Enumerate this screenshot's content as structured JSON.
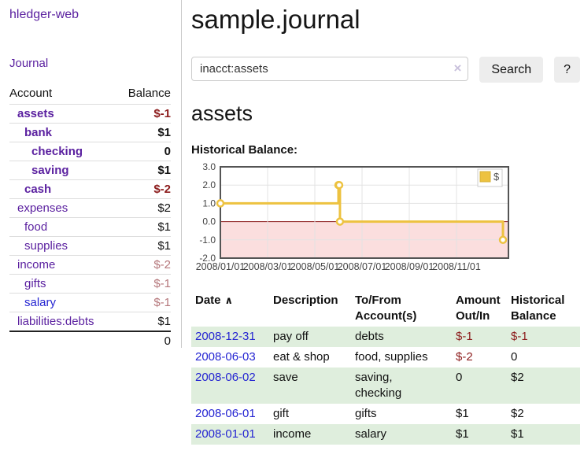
{
  "colors": {
    "link_purple": "#5b21a0",
    "link_blue": "#2525d2",
    "negative_strong": "#8c1c1c",
    "negative_muted": "#b5777b",
    "row_stripe_green": "#dfeedd",
    "chart_series_yellow": "#edc240",
    "chart_negative_region": "#fbdede",
    "chart_zero_line": "#8c1c1c"
  },
  "sidebar": {
    "brand": "hledger-web",
    "journal_link": "Journal",
    "header": {
      "account": "Account",
      "balance": "Balance"
    },
    "accounts": [
      {
        "name": "assets",
        "balance": "$-1",
        "level": 1,
        "bold": true,
        "name_color": "purple",
        "balance_color": "neg-strong"
      },
      {
        "name": "bank",
        "balance": "$1",
        "level": 2,
        "bold": true,
        "name_color": "purple",
        "balance_color": "black"
      },
      {
        "name": "checking",
        "balance": "0",
        "level": 3,
        "bold": true,
        "name_color": "purple",
        "balance_color": "black"
      },
      {
        "name": "saving",
        "balance": "$1",
        "level": 3,
        "bold": true,
        "name_color": "purple",
        "balance_color": "black"
      },
      {
        "name": "cash",
        "balance": "$-2",
        "level": 2,
        "bold": true,
        "name_color": "purple",
        "balance_color": "neg-strong"
      },
      {
        "name": "expenses",
        "balance": "$2",
        "level": 1,
        "bold": false,
        "name_color": "purple",
        "balance_color": "black"
      },
      {
        "name": "food",
        "balance": "$1",
        "level": 2,
        "bold": false,
        "name_color": "purple",
        "balance_color": "black"
      },
      {
        "name": "supplies",
        "balance": "$1",
        "level": 2,
        "bold": false,
        "name_color": "purple",
        "balance_color": "black"
      },
      {
        "name": "income",
        "balance": "$-2",
        "level": 1,
        "bold": false,
        "name_color": "purple",
        "balance_color": "neg-muted"
      },
      {
        "name": "gifts",
        "balance": "$-1",
        "level": 2,
        "bold": false,
        "name_color": "purple",
        "balance_color": "neg-muted"
      },
      {
        "name": "salary",
        "balance": "$-1",
        "level": 2,
        "bold": false,
        "name_color": "blue",
        "balance_color": "neg-muted"
      },
      {
        "name": "liabilities:debts",
        "balance": "$1",
        "level": 1,
        "bold": false,
        "name_color": "purple",
        "balance_color": "black"
      }
    ],
    "total": "0"
  },
  "main": {
    "title": "sample.journal",
    "search": {
      "value": "inacct:assets",
      "clear_icon": "×",
      "search_button": "Search",
      "help_button": "?"
    },
    "account_heading": "assets",
    "chart_heading": "Historical Balance:"
  },
  "chart_data": {
    "type": "line",
    "style": "step",
    "title": "Historical Balance",
    "series": [
      {
        "name": "$",
        "color": "#edc240",
        "points": [
          [
            "2008-01-01",
            1
          ],
          [
            "2008-06-01",
            2
          ],
          [
            "2008-06-02",
            2
          ],
          [
            "2008-06-03",
            0
          ],
          [
            "2008-12-31",
            -1
          ]
        ]
      }
    ],
    "ylim": [
      -2,
      3
    ],
    "y_ticks": [
      "3.0",
      "2.0",
      "1.0",
      "0.0",
      "-1.0",
      "-2.0"
    ],
    "x_ticks": [
      "2008/01/01",
      "2008/03/01",
      "2008/05/01",
      "2008/07/01",
      "2008/09/01",
      "2008/11/01"
    ],
    "x_tick_months": [
      0,
      2,
      4,
      6,
      8,
      10
    ],
    "xlim_months": [
      0,
      12.2
    ],
    "grid": true,
    "legend": {
      "label": "$",
      "position": "top-right"
    }
  },
  "register": {
    "headers": {
      "date": "Date",
      "sort_icon": "∧",
      "description": "Description",
      "account": "To/From\nAccount(s)",
      "amount": "Amount\nOut/In",
      "balance": "Historical\nBalance"
    },
    "rows": [
      {
        "date": "2008-12-31",
        "description": "pay off",
        "accounts": "debts",
        "amount": "$-1",
        "amount_neg": true,
        "balance": "$-1",
        "balance_neg": true,
        "shaded": true
      },
      {
        "date": "2008-06-03",
        "description": "eat & shop",
        "accounts": "food, supplies",
        "amount": "$-2",
        "amount_neg": true,
        "balance": "0",
        "balance_neg": false,
        "shaded": false
      },
      {
        "date": "2008-06-02",
        "description": "save",
        "accounts": "saving,\nchecking",
        "amount": "0",
        "amount_neg": false,
        "balance": "$2",
        "balance_neg": false,
        "shaded": true
      },
      {
        "date": "2008-06-01",
        "description": "gift",
        "accounts": "gifts",
        "amount": "$1",
        "amount_neg": false,
        "balance": "$2",
        "balance_neg": false,
        "shaded": false
      },
      {
        "date": "2008-01-01",
        "description": "income",
        "accounts": "salary",
        "amount": "$1",
        "amount_neg": false,
        "balance": "$1",
        "balance_neg": false,
        "shaded": true
      }
    ]
  }
}
